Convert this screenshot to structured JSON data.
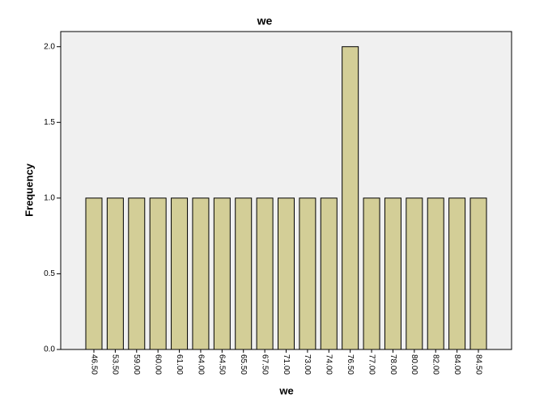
{
  "chart_data": {
    "type": "bar",
    "title": "we",
    "x_label": "we",
    "y_label": "Frequency",
    "categories": [
      "46.50",
      "53.50",
      "59.00",
      "60.00",
      "61.00",
      "64.00",
      "64.50",
      "65.50",
      "67.50",
      "71.00",
      "73.00",
      "74.00",
      "76.50",
      "77.00",
      "78.00",
      "80.00",
      "82.00",
      "84.00",
      "84.50"
    ],
    "values": [
      1,
      1,
      1,
      1,
      1,
      1,
      1,
      1,
      1,
      1,
      1,
      1,
      2,
      1,
      1,
      1,
      1,
      1,
      1
    ],
    "color": "#d3ce97",
    "ylim": [
      0,
      2.1
    ],
    "yticks": [
      {
        "value": 0,
        "label": "0.0"
      },
      0.5,
      {
        "value": 1,
        "label": "1.0"
      },
      1.5,
      {
        "value": 2,
        "label": "2.0"
      }
    ]
  }
}
